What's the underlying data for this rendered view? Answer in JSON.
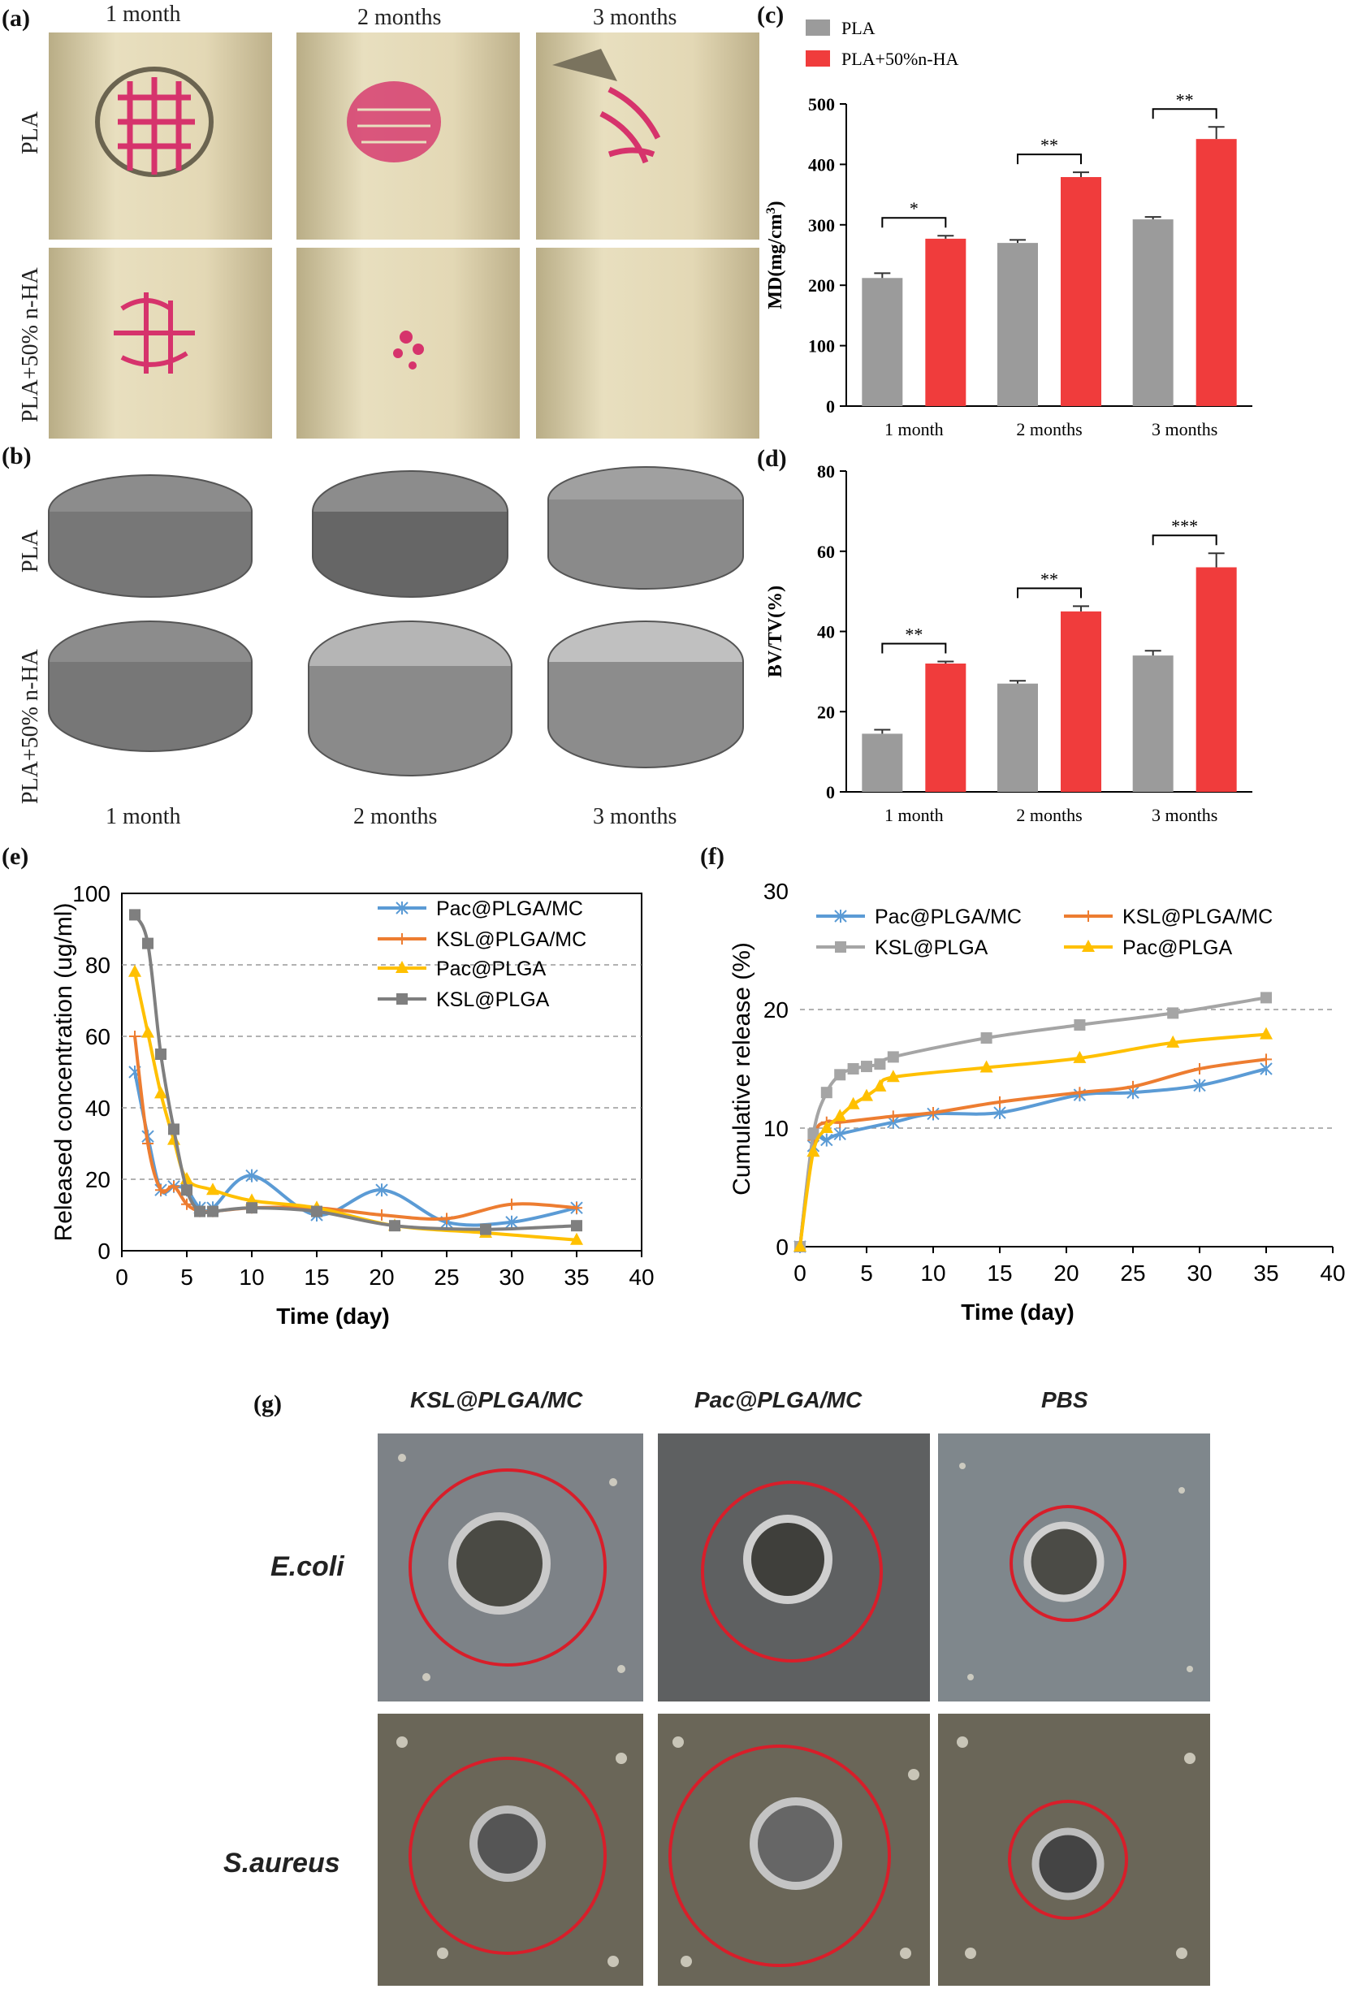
{
  "panels": {
    "a": "(a)",
    "b": "(b)",
    "c": "(c)",
    "d": "(d)",
    "e": "(e)",
    "f": "(f)",
    "g": "(g)"
  },
  "micro_ct": {
    "top_cols": [
      "1 month",
      "2 months",
      "3 months"
    ],
    "bottom_cols": [
      "1 month",
      "2 months",
      "3 months"
    ],
    "rows": [
      "PLA",
      "PLA+50% n-HA"
    ],
    "rows_b": [
      "PLA",
      "PLA+50% n-HA"
    ]
  },
  "plates": {
    "cols": [
      "KSL@PLGA/MC",
      "Pac@PLGA/MC",
      "PBS"
    ],
    "rows": [
      "E.coli",
      "S.aureus"
    ]
  },
  "colors": {
    "pla": "#9b9b9b",
    "plaha": "#f03c3c",
    "pac_mc": "#5b9bd5",
    "ksl_mc": "#ed7d31",
    "pac": "#ffc000",
    "ksl": "#7f7f7f",
    "ksl_f": "#a5a5a5"
  },
  "chart_data": [
    {
      "id": "c",
      "type": "bar",
      "categories": [
        "1 month",
        "2 months",
        "3 months"
      ],
      "series": [
        {
          "name": "PLA",
          "values": [
            212,
            270,
            309
          ],
          "errors": [
            8,
            5,
            4
          ]
        },
        {
          "name": "PLA+50%n-HA",
          "values": [
            277,
            379,
            442
          ],
          "errors": [
            5,
            8,
            20
          ]
        }
      ],
      "significance": [
        "*",
        "**",
        "**"
      ],
      "ylabel": "MD(mg/cm3)",
      "ylim": [
        0,
        500
      ],
      "yticks": [
        "0",
        "100",
        "200",
        "300",
        "400",
        "500"
      ],
      "legend": "top-left"
    },
    {
      "id": "d",
      "type": "bar",
      "categories": [
        "1 month",
        "2 months",
        "3 months"
      ],
      "series": [
        {
          "name": "PLA",
          "values": [
            14.5,
            27,
            34
          ],
          "errors": [
            1,
            0.7,
            1.2
          ]
        },
        {
          "name": "PLA+50%n-HA",
          "values": [
            32,
            45,
            56
          ],
          "errors": [
            0.5,
            1.3,
            3.5
          ]
        }
      ],
      "significance": [
        "**",
        "**",
        "***"
      ],
      "ylabel": "BV/TV(%)",
      "ylim": [
        0,
        80
      ],
      "yticks": [
        "0",
        "20",
        "40",
        "60",
        "80"
      ]
    },
    {
      "id": "e",
      "type": "line",
      "xlabel": "Time (day)",
      "ylabel": "Released concentration (ug/ml)",
      "xlim": [
        0,
        40
      ],
      "ylim": [
        0,
        100
      ],
      "xticks": [
        "0",
        "5",
        "10",
        "15",
        "20",
        "25",
        "30",
        "35",
        "40"
      ],
      "yticks": [
        "0",
        "20",
        "40",
        "60",
        "80",
        "100"
      ],
      "grid": "horizontal dashed",
      "legend": "top-right",
      "series": [
        {
          "name": "Pac@PLGA/MC",
          "x": [
            1,
            2,
            3,
            4,
            5,
            6,
            7,
            10,
            15,
            20,
            25,
            30,
            35
          ],
          "y": [
            50,
            32,
            17,
            18,
            17,
            12,
            12,
            21,
            10,
            17,
            8,
            8,
            12
          ]
        },
        {
          "name": "KSL@PLGA/MC",
          "x": [
            1,
            2,
            3,
            4,
            5,
            6,
            7,
            10,
            15,
            20,
            25,
            30,
            35
          ],
          "y": [
            60,
            30,
            17,
            18,
            13,
            11,
            11,
            12,
            12,
            10,
            9,
            13,
            12
          ]
        },
        {
          "name": "Pac@PLGA",
          "x": [
            1,
            2,
            3,
            4,
            5,
            7,
            10,
            15,
            21,
            28,
            35
          ],
          "y": [
            78,
            61,
            44,
            31,
            20,
            17,
            14,
            12,
            7,
            5,
            3
          ]
        },
        {
          "name": "KSL@PLGA",
          "x": [
            1,
            2,
            3,
            4,
            5,
            6,
            7,
            10,
            15,
            21,
            28,
            35
          ],
          "y": [
            94,
            86,
            55,
            34,
            17,
            11,
            11,
            12,
            11,
            7,
            6,
            7
          ]
        }
      ]
    },
    {
      "id": "f",
      "type": "line",
      "xlabel": "Time (day)",
      "ylabel": "Cumulative release (%)",
      "xlim": [
        0,
        40
      ],
      "ylim": [
        0,
        30
      ],
      "xticks": [
        "0",
        "5",
        "10",
        "15",
        "20",
        "25",
        "30",
        "35",
        "40"
      ],
      "yticks": [
        "0",
        "10",
        "20",
        "30"
      ],
      "grid": "horizontal dashed",
      "legend": "top",
      "series": [
        {
          "name": "Pac@PLGA/MC",
          "x": [
            0,
            1,
            2,
            3,
            7,
            10,
            15,
            21,
            25,
            30,
            35
          ],
          "y": [
            0,
            8.5,
            9,
            9.5,
            10.5,
            11.2,
            11.3,
            12.8,
            13,
            13.6,
            15
          ]
        },
        {
          "name": "KSL@PLGA/MC",
          "x": [
            0,
            1,
            2,
            3,
            7,
            10,
            15,
            21,
            25,
            30,
            35
          ],
          "y": [
            0,
            9,
            10.5,
            10.5,
            11,
            11.3,
            12.2,
            13,
            13.5,
            15,
            15.8
          ]
        },
        {
          "name": "KSL@PLGA",
          "x": [
            0,
            1,
            2,
            3,
            4,
            5,
            6,
            7,
            14,
            21,
            28,
            35
          ],
          "y": [
            0,
            9.5,
            13,
            14.5,
            15,
            15.2,
            15.4,
            16,
            17.6,
            18.7,
            19.7,
            21
          ]
        },
        {
          "name": "Pac@PLGA",
          "x": [
            0,
            1,
            2,
            3,
            4,
            5,
            6,
            7,
            14,
            21,
            28,
            35
          ],
          "y": [
            0,
            8,
            10,
            11,
            12,
            12.7,
            13.5,
            14.3,
            15.1,
            15.9,
            17.2,
            17.9
          ]
        }
      ]
    }
  ]
}
